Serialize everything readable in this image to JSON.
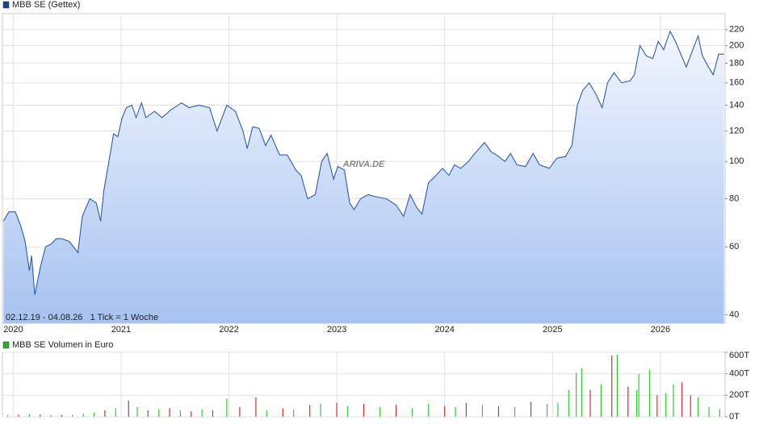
{
  "chart_data": [
    {
      "type": "line",
      "title": "MBB SE (Gettex)",
      "legend_color": "#1a3f8f",
      "note": "02.12.19 - 04.08.26   1 Tick = 1 Woche",
      "watermark": "ARIVA.DE",
      "color": "#2a5db0",
      "log_scale": true,
      "grid": true,
      "xlim": [
        2019.9,
        2026.6
      ],
      "xticks": [
        2020,
        2021,
        2022,
        2023,
        2024,
        2025,
        2026
      ],
      "ylim": [
        38,
        242
      ],
      "yticks": [
        40,
        60,
        80,
        100,
        120,
        140,
        160,
        180,
        200,
        220
      ],
      "x": [
        2019.91,
        2019.96,
        2020.02,
        2020.07,
        2020.11,
        2020.15,
        2020.17,
        2020.2,
        2020.25,
        2020.3,
        2020.35,
        2020.4,
        2020.45,
        2020.52,
        2020.6,
        2020.64,
        2020.71,
        2020.77,
        2020.81,
        2020.84,
        2020.9,
        2020.93,
        2020.97,
        2021.01,
        2021.05,
        2021.1,
        2021.14,
        2021.19,
        2021.23,
        2021.31,
        2021.38,
        2021.46,
        2021.56,
        2021.63,
        2021.72,
        2021.82,
        2021.89,
        2021.98,
        2022.06,
        2022.13,
        2022.17,
        2022.22,
        2022.28,
        2022.34,
        2022.39,
        2022.47,
        2022.54,
        2022.62,
        2022.67,
        2022.73,
        2022.8,
        2022.86,
        2022.91,
        2022.97,
        2023.01,
        2023.07,
        2023.12,
        2023.16,
        2023.22,
        2023.29,
        2023.36,
        2023.46,
        2023.55,
        2023.62,
        2023.68,
        2023.74,
        2023.79,
        2023.85,
        2023.92,
        2023.98,
        2024.04,
        2024.09,
        2024.15,
        2024.22,
        2024.28,
        2024.37,
        2024.43,
        2024.48,
        2024.56,
        2024.61,
        2024.67,
        2024.75,
        2024.82,
        2024.88,
        2024.97,
        2025.04,
        2025.12,
        2025.18,
        2025.23,
        2025.28,
        2025.34,
        2025.4,
        2025.46,
        2025.51,
        2025.57,
        2025.64,
        2025.72,
        2025.76,
        2025.81,
        2025.87,
        2025.93,
        2025.98,
        2026.03,
        2026.09,
        2026.14,
        2026.19,
        2026.24,
        2026.3,
        2026.35,
        2026.39,
        2026.45,
        2026.49,
        2026.54,
        2026.59
      ],
      "values": [
        70,
        74,
        74,
        68,
        62,
        52,
        57,
        45,
        53,
        60,
        61,
        63,
        63,
        62,
        58,
        72,
        80,
        78,
        70,
        84,
        105,
        118,
        116,
        130,
        138,
        140,
        130,
        142,
        130,
        135,
        130,
        136,
        142,
        138,
        140,
        138,
        120,
        140,
        135,
        120,
        108,
        123,
        122,
        110,
        117,
        104,
        104,
        95,
        92,
        80,
        82,
        100,
        105,
        90,
        97,
        95,
        78,
        75,
        80,
        82,
        81,
        80,
        77,
        72,
        82,
        76,
        73,
        88,
        92,
        96,
        92,
        98,
        96,
        100,
        105,
        112,
        106,
        104,
        100,
        105,
        98,
        97,
        105,
        98,
        96,
        102,
        103,
        110,
        140,
        153,
        160,
        150,
        138,
        160,
        170,
        160,
        162,
        168,
        200,
        188,
        185,
        205,
        195,
        218,
        205,
        190,
        176,
        195,
        212,
        188,
        175,
        168,
        190,
        190
      ]
    },
    {
      "type": "volume",
      "title": "MBB SE Volumen in Euro",
      "legend_color": "#33aa33",
      "grid": true,
      "xlim": [
        2019.9,
        2026.6
      ],
      "xticks": [
        2020,
        2021,
        2022,
        2023,
        2024,
        2025,
        2026
      ],
      "ylim": [
        0,
        600000
      ],
      "yticks": [
        {
          "value": 0,
          "label": "0T"
        },
        {
          "value": 200000,
          "label": "200T"
        },
        {
          "value": 400000,
          "label": "400T"
        },
        {
          "value": 600000,
          "label": "600T"
        }
      ],
      "x": [
        2019.95,
        2020.05,
        2020.15,
        2020.25,
        2020.35,
        2020.45,
        2020.55,
        2020.65,
        2020.75,
        2020.85,
        2020.95,
        2021.07,
        2021.15,
        2021.25,
        2021.35,
        2021.45,
        2021.55,
        2021.65,
        2021.75,
        2021.85,
        2021.98,
        2022.1,
        2022.25,
        2022.35,
        2022.5,
        2022.6,
        2022.75,
        2022.85,
        2023.0,
        2023.1,
        2023.25,
        2023.4,
        2023.55,
        2023.7,
        2023.85,
        2024.0,
        2024.1,
        2024.2,
        2024.35,
        2024.5,
        2024.65,
        2024.8,
        2024.95,
        2025.05,
        2025.15,
        2025.22,
        2025.27,
        2025.35,
        2025.45,
        2025.55,
        2025.6,
        2025.7,
        2025.78,
        2025.8,
        2025.9,
        2025.97,
        2026.05,
        2026.12,
        2026.2,
        2026.28,
        2026.35,
        2026.45,
        2026.55
      ],
      "values": [
        15000,
        20000,
        25000,
        20000,
        18000,
        15000,
        20000,
        30000,
        40000,
        60000,
        80000,
        150000,
        90000,
        60000,
        70000,
        80000,
        60000,
        50000,
        70000,
        60000,
        170000,
        90000,
        180000,
        60000,
        80000,
        70000,
        110000,
        120000,
        130000,
        100000,
        120000,
        90000,
        110000,
        80000,
        120000,
        100000,
        90000,
        130000,
        110000,
        100000,
        90000,
        140000,
        120000,
        130000,
        250000,
        410000,
        450000,
        250000,
        300000,
        570000,
        580000,
        280000,
        250000,
        400000,
        440000,
        200000,
        220000,
        300000,
        320000,
        200000,
        180000,
        90000,
        70000
      ],
      "colors": [
        "#3c3",
        "#c33",
        "#3c3",
        "#c33",
        "#3c3",
        "#c33",
        "#3c3",
        "#3c3",
        "#3c3",
        "#c33",
        "#3c3",
        "#c33",
        "#3c3",
        "#c33",
        "#3c3",
        "#c33",
        "#3c3",
        "#c33",
        "#3c3",
        "#c33",
        "#3c3",
        "#c33",
        "#c33",
        "#3c3",
        "#c33",
        "#3c3",
        "#c33",
        "#3c3",
        "#c33",
        "#3c3",
        "#c33",
        "#3c3",
        "#c33",
        "#3c3",
        "#3c3",
        "#c33",
        "#3c3",
        "#c33",
        "#3c3",
        "#c33",
        "#3c3",
        "#c33",
        "#3c3",
        "#3c3",
        "#3c3",
        "#3c3",
        "#3c3",
        "#c33",
        "#3c3",
        "#c33",
        "#3c3",
        "#c33",
        "#3c3",
        "#3c3",
        "#3c3",
        "#c33",
        "#3c3",
        "#3c3",
        "#c33",
        "#c33",
        "#3c3",
        "#3c3",
        "#3c3"
      ]
    }
  ]
}
